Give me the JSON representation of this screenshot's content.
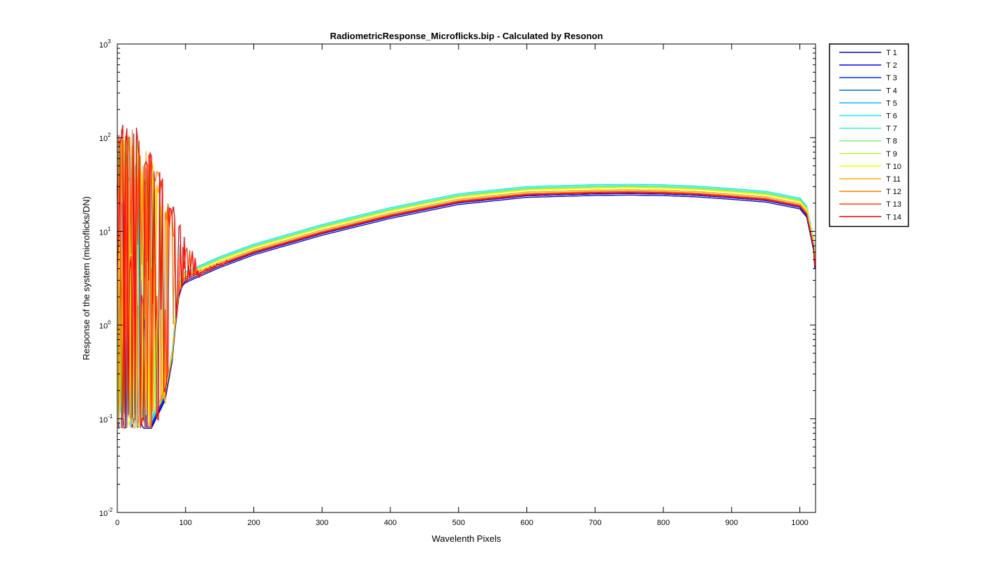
{
  "chart_data": {
    "type": "line",
    "title": "RadiometricResponse_Microflicks.bip - Calculated by Resonon",
    "xlabel": "Wavelenth Pixels",
    "ylabel": "Response of the system (microflicks/DN)",
    "xlim": [
      0,
      1023
    ],
    "ylim": [
      0.01,
      1000
    ],
    "yscale": "log",
    "xticks": [
      0,
      100,
      200,
      300,
      400,
      500,
      600,
      700,
      800,
      900,
      1000
    ],
    "yticks": [
      {
        "base": "10",
        "exp": "-2",
        "value": 0.01
      },
      {
        "base": "10",
        "exp": "-1",
        "value": 0.1
      },
      {
        "base": "10",
        "exp": "0",
        "value": 1
      },
      {
        "base": "10",
        "exp": "1",
        "value": 10
      },
      {
        "base": "10",
        "exp": "2",
        "value": 100
      },
      {
        "base": "10",
        "exp": "3",
        "value": 1000
      }
    ],
    "grid": false,
    "legend_position": "outside-right",
    "series": [
      {
        "name": "T 1",
        "color": "#0000b0",
        "scale": 0.79,
        "noise_end": 40
      },
      {
        "name": "T 2",
        "color": "#0000e0",
        "scale": 0.82,
        "noise_end": 42
      },
      {
        "name": "T 3",
        "color": "#0030ff",
        "scale": 0.86,
        "noise_end": 44
      },
      {
        "name": "T 4",
        "color": "#0070e0",
        "scale": 0.9,
        "noise_end": 46
      },
      {
        "name": "T 5",
        "color": "#10b0ff",
        "scale": 0.97,
        "noise_end": 48
      },
      {
        "name": "T 6",
        "color": "#10e8f0",
        "scale": 1.03,
        "noise_end": 50
      },
      {
        "name": "T 7",
        "color": "#40f0c0",
        "scale": 1.0,
        "noise_end": 52
      },
      {
        "name": "T 8",
        "color": "#80f080",
        "scale": 0.98,
        "noise_end": 56
      },
      {
        "name": "T 9",
        "color": "#c0f040",
        "scale": 0.96,
        "noise_end": 60
      },
      {
        "name": "T 10",
        "color": "#ffff00",
        "scale": 0.94,
        "noise_end": 66
      },
      {
        "name": "T 11",
        "color": "#ffb000",
        "scale": 0.9,
        "noise_end": 75
      },
      {
        "name": "T 12",
        "color": "#ff8000",
        "scale": 0.87,
        "noise_end": 88
      },
      {
        "name": "T 13",
        "color": "#ff4010",
        "scale": 0.85,
        "noise_end": 110
      },
      {
        "name": "T 14",
        "color": "#ff0000",
        "scale": 0.84,
        "noise_end": 122
      }
    ],
    "base_curve": {
      "x": [
        0,
        50,
        70,
        80,
        85,
        90,
        95,
        100,
        150,
        200,
        300,
        400,
        500,
        600,
        700,
        750,
        800,
        850,
        900,
        950,
        1000,
        1010,
        1020,
        1023
      ],
      "y": [
        0.1,
        0.1,
        0.2,
        0.5,
        1.2,
        2.5,
        3.3,
        3.6,
        5.2,
        7.1,
        11.5,
        17.4,
        24.5,
        29.2,
        30.6,
        30.9,
        30.5,
        29.5,
        27.8,
        26.0,
        22.0,
        18.0,
        8.0,
        4.0
      ]
    },
    "left_peak": {
      "x": [
        0,
        10,
        20,
        30,
        40,
        50,
        60,
        70,
        80,
        90,
        100,
        110,
        120,
        130
      ],
      "y": [
        150,
        140,
        145,
        130,
        100,
        75,
        50,
        30,
        20,
        15,
        12,
        8,
        6,
        5
      ]
    }
  }
}
